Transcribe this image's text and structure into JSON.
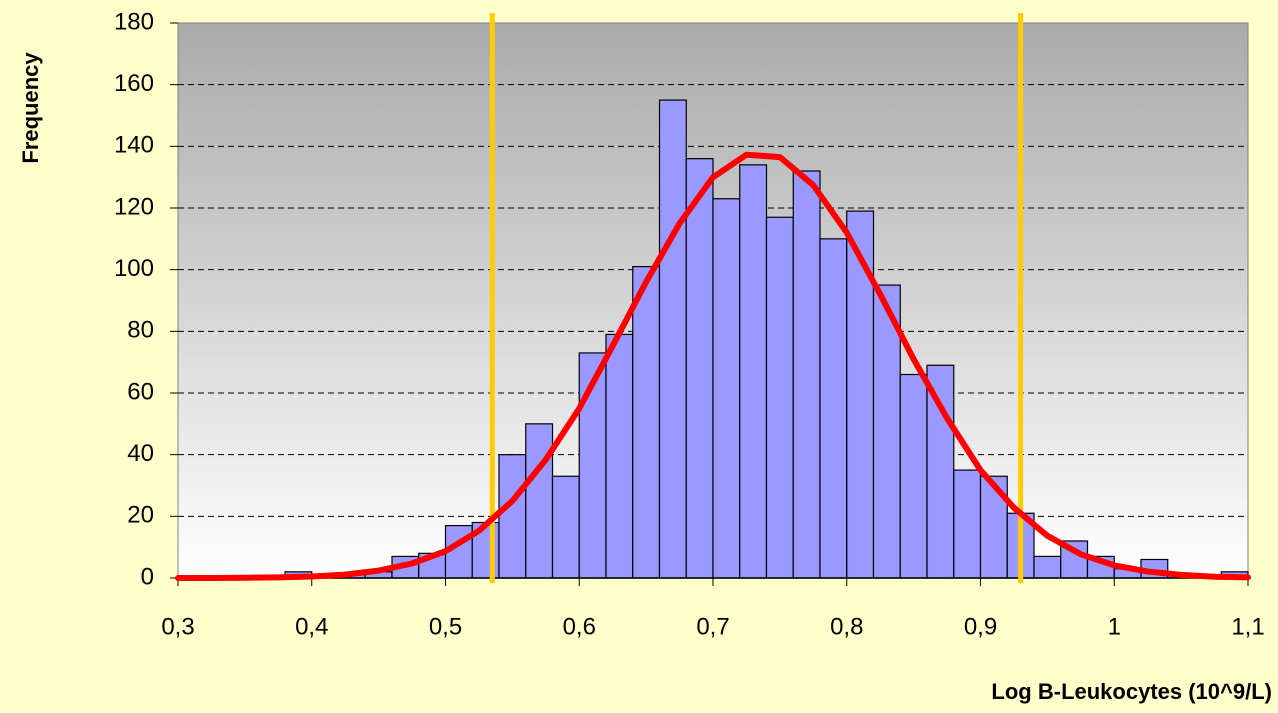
{
  "chart_data": {
    "type": "histogram",
    "x_label": "Log B-Leukocytes (10^9/L)",
    "y_label": "Frequency",
    "bins": [
      0.38,
      0.4,
      0.42,
      0.44,
      0.46,
      0.48,
      0.5,
      0.52,
      0.54,
      0.56,
      0.58,
      0.6,
      0.62,
      0.64,
      0.66,
      0.68,
      0.7,
      0.72,
      0.74,
      0.76,
      0.78,
      0.8,
      0.82,
      0.84,
      0.86,
      0.88,
      0.9,
      0.92,
      0.94,
      0.96,
      0.98,
      1.0,
      1.02,
      1.04,
      1.06,
      1.08,
      1.1
    ],
    "values": [
      2,
      1,
      1,
      2,
      7,
      8,
      17,
      18,
      40,
      50,
      33,
      73,
      79,
      101,
      155,
      136,
      123,
      134,
      117,
      132,
      110,
      119,
      95,
      66,
      69,
      35,
      33,
      21,
      7,
      12,
      7,
      3,
      6,
      1,
      1,
      2
    ],
    "color": "#9999ff",
    "curve": {
      "color": "#ff0000",
      "x": [
        0.3,
        0.325,
        0.35,
        0.375,
        0.4,
        0.425,
        0.45,
        0.475,
        0.5,
        0.525,
        0.55,
        0.575,
        0.6,
        0.625,
        0.65,
        0.675,
        0.7,
        0.725,
        0.75,
        0.775,
        0.8,
        0.825,
        0.85,
        0.875,
        0.9,
        0.925,
        0.95,
        0.975,
        1.0,
        1.025,
        1.05,
        1.075,
        1.1
      ],
      "y": [
        0,
        0,
        0.1,
        0.2,
        0.5,
        1.1,
        2.4,
        4.7,
        8.7,
        15.3,
        25,
        38.4,
        55,
        75.3,
        96,
        115,
        130,
        137.3,
        136.5,
        127.4,
        112,
        92,
        71,
        51.8,
        35,
        22.8,
        13.7,
        7.7,
        4.1,
        2.1,
        1,
        0.4,
        0.2
      ]
    },
    "vlines": [
      0.535,
      0.93
    ],
    "vline_color": "#ffcc00",
    "xlim": [
      0.3,
      1.1
    ],
    "xticks": [
      {
        "value": 0.3,
        "label": "0,3"
      },
      {
        "value": 0.4,
        "label": "0,4"
      },
      {
        "value": 0.5,
        "label": "0,5"
      },
      {
        "value": 0.6,
        "label": "0,6"
      },
      {
        "value": 0.7,
        "label": "0,7"
      },
      {
        "value": 0.8,
        "label": "0,8"
      },
      {
        "value": 0.9,
        "label": "0,9"
      },
      1,
      {
        "value": 1.1,
        "label": "1,1"
      }
    ],
    "ylim": [
      0,
      180
    ],
    "yticks": [
      0,
      20,
      40,
      60,
      80,
      100,
      120,
      140,
      160,
      180
    ],
    "grid": true
  }
}
